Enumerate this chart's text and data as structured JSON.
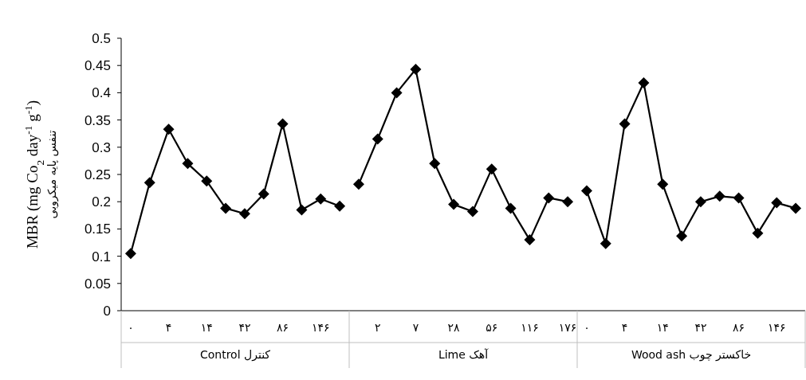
{
  "chart_data": {
    "type": "line",
    "categories": [
      "۰",
      null,
      "۴",
      null,
      "۱۴",
      null,
      "۴۲",
      null,
      "۸۶",
      null,
      "۱۴۶",
      null,
      null,
      "۲",
      null,
      "۷",
      null,
      "۲۸",
      null,
      "۵۶",
      null,
      "۱۱۶",
      null,
      "۱۷۶",
      "۰",
      null,
      "۴",
      null,
      "۱۴",
      null,
      "۴۲",
      null,
      "۸۶",
      null,
      "۱۴۶",
      null
    ],
    "series": [
      {
        "color": "#000000",
        "values": [
          0.105,
          0.235,
          0.333,
          0.27,
          0.238,
          0.188,
          0.178,
          0.214,
          0.343,
          0.185,
          0.205,
          0.192,
          null,
          null,
          null,
          null,
          null,
          null,
          null,
          null,
          null,
          null,
          null,
          null,
          null,
          null,
          null,
          null,
          null,
          null,
          null,
          null,
          null,
          null,
          null,
          null
        ]
      },
      {
        "color": "#000000",
        "values": [
          null,
          null,
          null,
          null,
          null,
          null,
          null,
          null,
          null,
          null,
          null,
          null,
          0.232,
          0.315,
          0.4,
          0.443,
          0.27,
          0.195,
          0.182,
          0.26,
          0.188,
          0.13,
          0.207,
          0.2,
          null,
          null,
          null,
          null,
          null,
          null,
          null,
          null,
          null,
          null,
          null,
          null
        ]
      },
      {
        "color": "#000000",
        "values": [
          null,
          null,
          null,
          null,
          null,
          null,
          null,
          null,
          null,
          null,
          null,
          null,
          null,
          null,
          null,
          null,
          null,
          null,
          null,
          null,
          null,
          null,
          null,
          null,
          0.22,
          0.123,
          0.343,
          0.418,
          0.232,
          0.137,
          0.2,
          0.21,
          0.207,
          0.142,
          0.198,
          0.188
        ]
      }
    ],
    "ylabel": "MBR (mg Co$_{2}$ day$^{-1}$ g$^{-1}$)",
    "annotations": [
      "تنفس پایه میکروبی",
      "کنترل Control",
      "آهک Lime",
      "خاکستر چوب Wood ash"
    ],
    "ylim": [
      0,
      0.5
    ],
    "yticks": [
      0,
      0.05,
      0.1,
      0.15,
      0.2,
      0.25,
      0.3,
      0.35,
      0.4,
      0.45,
      0.5
    ],
    "grid": false,
    "marker": "diamond",
    "line_style": "solid"
  }
}
